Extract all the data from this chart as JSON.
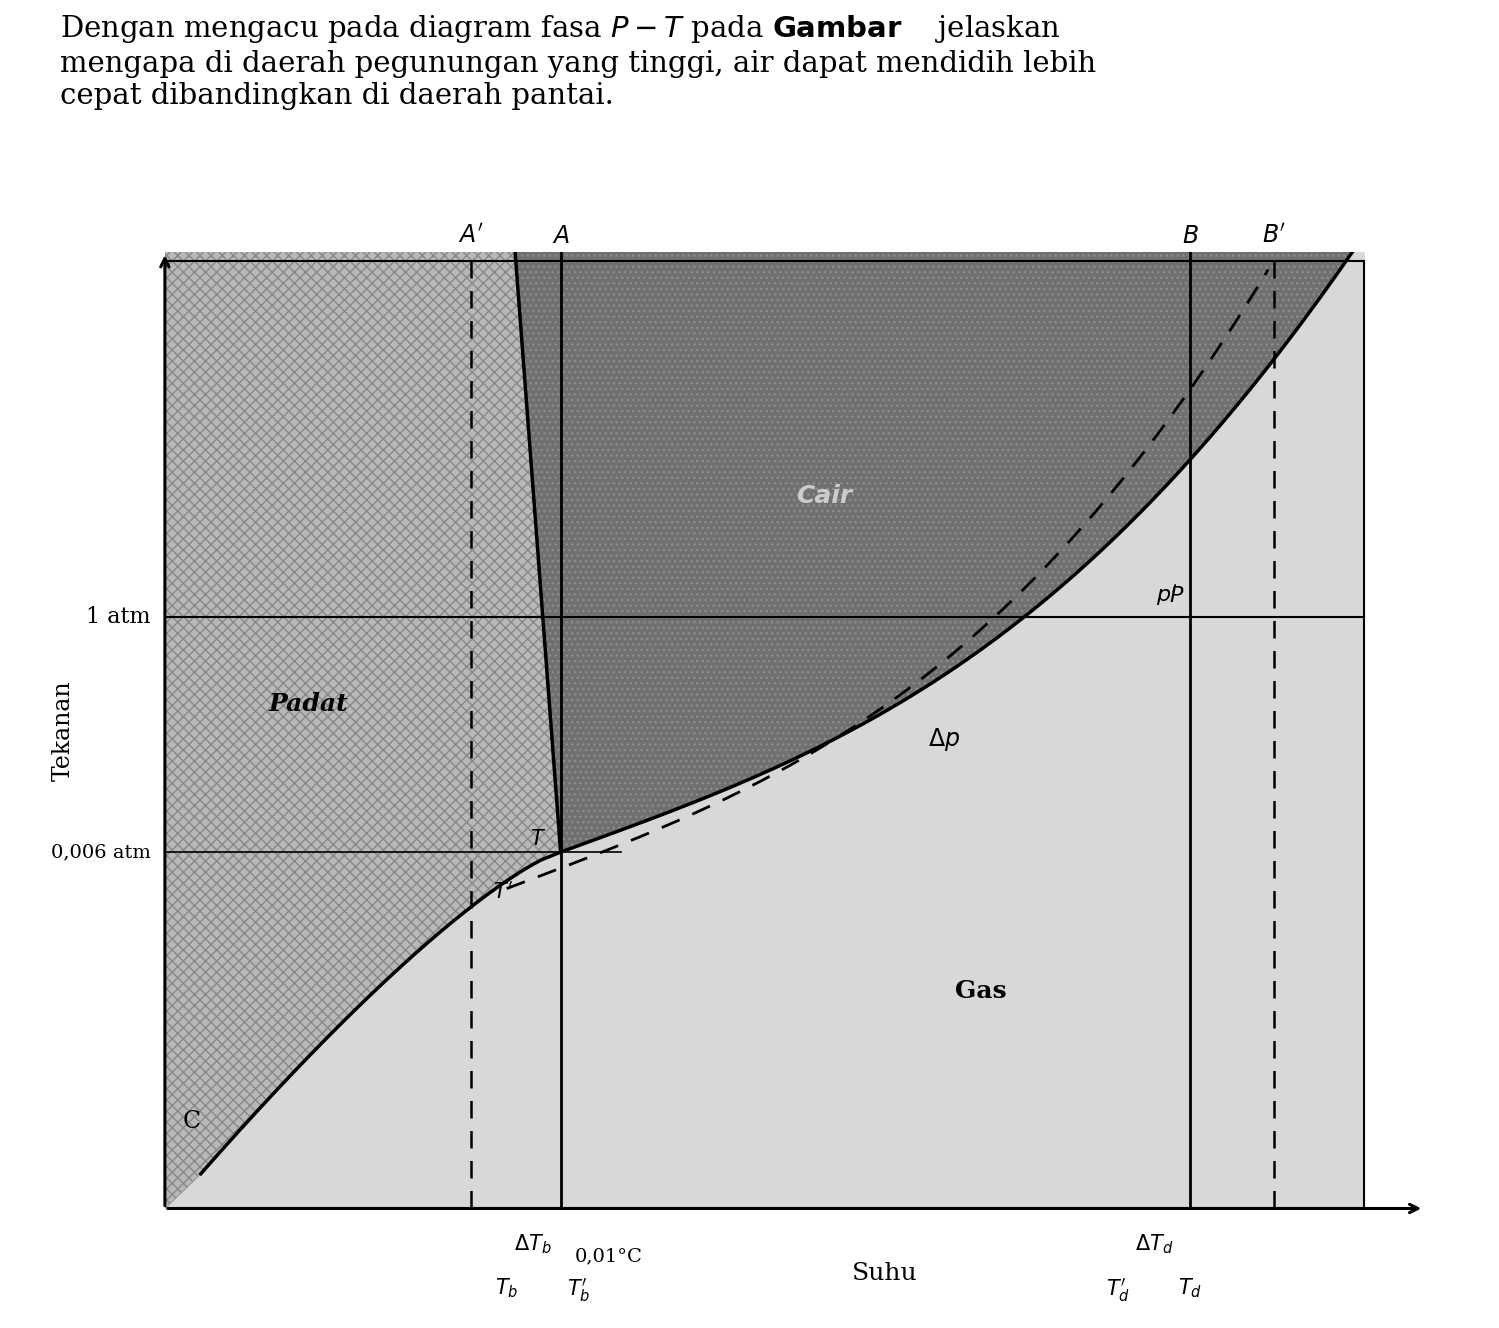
{
  "ylabel": "Tekanan",
  "xlabel": "Suhu",
  "label_1atm": "1 atm",
  "label_0006atm": "0,006 atm",
  "label_C": "C",
  "label_padat": "Padat",
  "label_cair": "Cair",
  "label_gas": "Gas",
  "label_deltaP": "Δp",
  "label_deltaTb": "ΔT_b",
  "label_deltaTd": "ΔT_d",
  "label_001C": "0,01°C",
  "label_Suhu": "Suhu",
  "background_color": "#ffffff",
  "color_solid": "#b8b8b8",
  "color_liquid": "#707070",
  "color_gas": "#d8d8d8",
  "color_hatch": "#999999",
  "x_triple": 3.3,
  "y_triple": 4.1,
  "y_1atm": 6.8,
  "y_0006atm": 4.1,
  "x_A": 3.3,
  "x_A_prime": 2.55,
  "x_B": 8.55,
  "x_B_prime": 9.25,
  "x_Tb": 2.85,
  "x_Tb_prime": 3.3,
  "x_Td_prime": 7.95,
  "x_Td": 8.55,
  "xlim": [
    0,
    10.5
  ],
  "ylim": [
    0,
    11.0
  ]
}
